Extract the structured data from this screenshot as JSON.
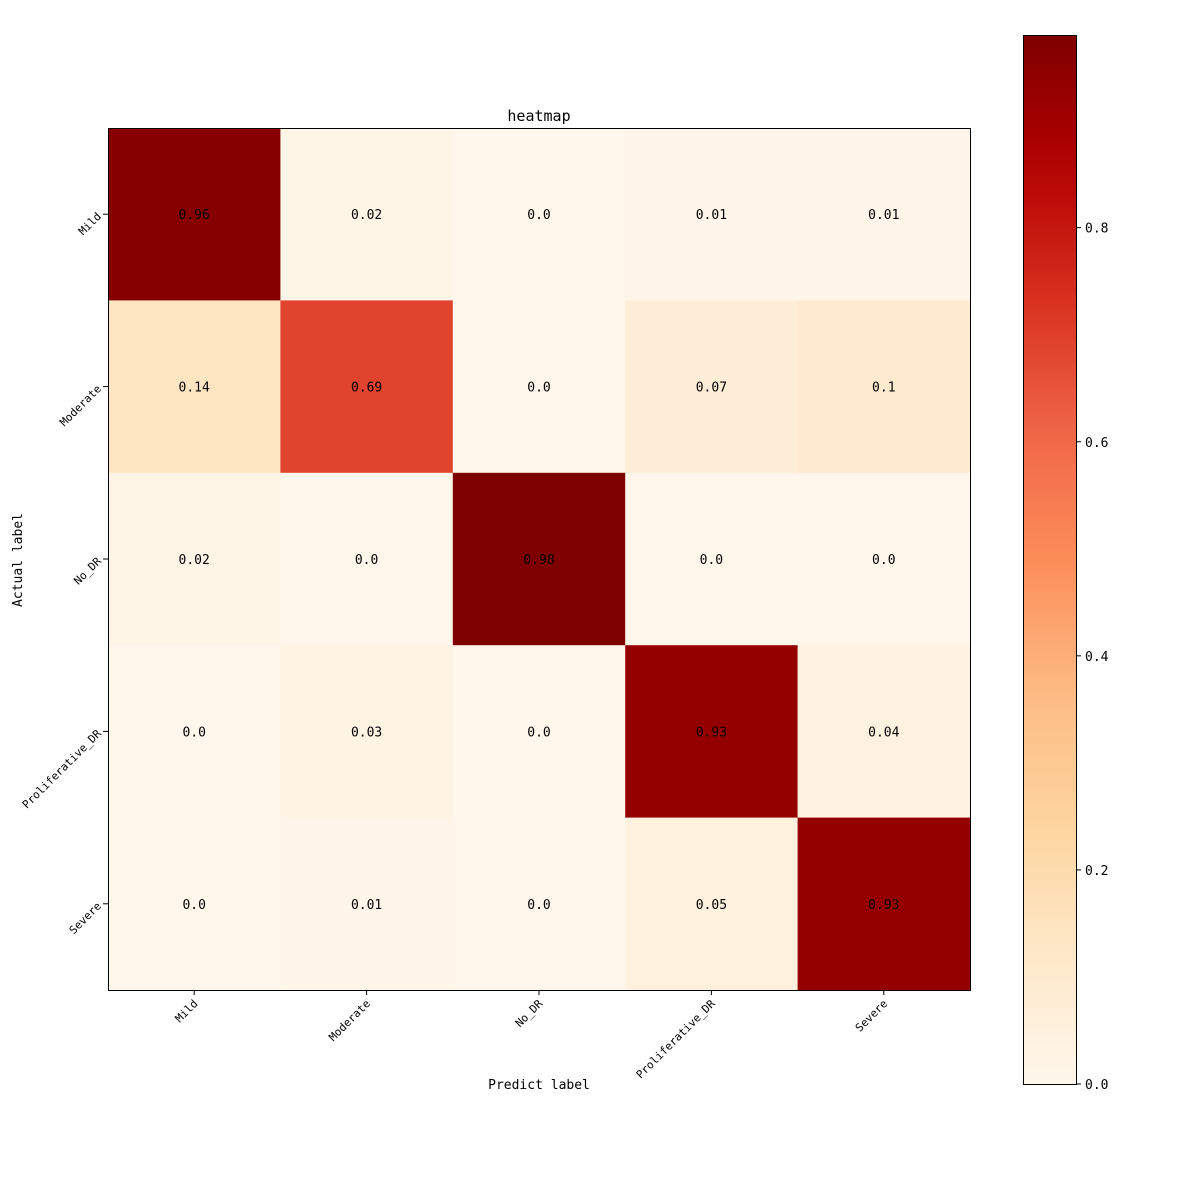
{
  "chart_data": {
    "type": "heatmap",
    "title": "heatmap",
    "xlabel": "Predict label",
    "ylabel": "Actual label",
    "x_categories": [
      "Mild",
      "Moderate",
      "No_DR",
      "Proliferative_DR",
      "Severe"
    ],
    "y_categories": [
      "Mild",
      "Moderate",
      "No_DR",
      "Proliferative_DR",
      "Severe"
    ],
    "values": [
      [
        0.96,
        0.02,
        0.0,
        0.01,
        0.01
      ],
      [
        0.14,
        0.69,
        0.0,
        0.07,
        0.1
      ],
      [
        0.02,
        0.0,
        0.98,
        0.0,
        0.0
      ],
      [
        0.0,
        0.03,
        0.0,
        0.93,
        0.04
      ],
      [
        0.0,
        0.01,
        0.0,
        0.05,
        0.93
      ]
    ],
    "value_labels": [
      [
        "0.96",
        "0.02",
        "0.0",
        "0.01",
        "0.01"
      ],
      [
        "0.14",
        "0.69",
        "0.0",
        "0.07",
        "0.1"
      ],
      [
        "0.02",
        "0.0",
        "0.98",
        "0.0",
        "0.0"
      ],
      [
        "0.0",
        "0.03",
        "0.0",
        "0.93",
        "0.04"
      ],
      [
        "0.0",
        "0.01",
        "0.0",
        "0.05",
        "0.93"
      ]
    ],
    "colormap": "OrRd",
    "colorbar": {
      "range": [
        0.0,
        0.98
      ],
      "ticks": [
        0.0,
        0.2,
        0.4,
        0.6,
        0.8
      ],
      "tick_labels": [
        "0.0",
        "0.2",
        "0.4",
        "0.6",
        "0.8"
      ],
      "placement": "right"
    },
    "grid": false
  }
}
